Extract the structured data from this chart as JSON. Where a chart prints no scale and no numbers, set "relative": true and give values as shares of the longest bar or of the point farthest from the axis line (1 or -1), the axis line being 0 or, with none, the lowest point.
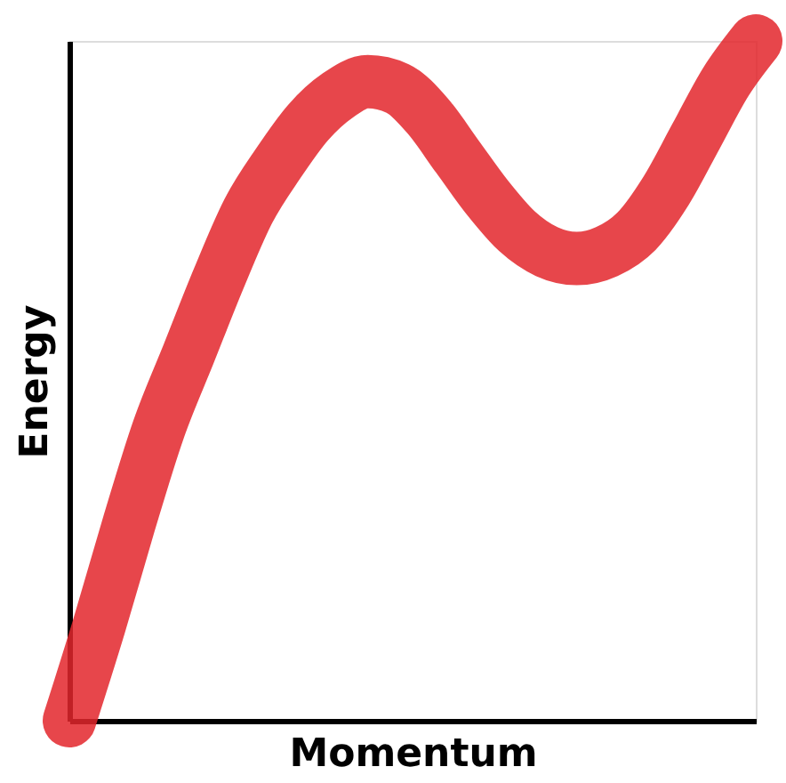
{
  "chart_data": {
    "type": "line",
    "xlabel": "Momentum",
    "ylabel": "Energy",
    "relative": true,
    "tick_labels": false,
    "grid": false,
    "categories": [
      null,
      null,
      null,
      null,
      null,
      null,
      null,
      null,
      null,
      null,
      null,
      null,
      null,
      null,
      null,
      null,
      null,
      null,
      null,
      null,
      null,
      null,
      null,
      null
    ],
    "series": [
      {
        "color": "#e3262b",
        "values": [
          0,
          0.14,
          0.29,
          0.43,
          0.54,
          0.65,
          0.75,
          0.82,
          0.88,
          0.92,
          0.94,
          0.93,
          0.89,
          0.83,
          0.77,
          0.72,
          0.69,
          0.68,
          0.69,
          0.72,
          0.78,
          0.86,
          0.94,
          1
        ]
      }
    ]
  }
}
